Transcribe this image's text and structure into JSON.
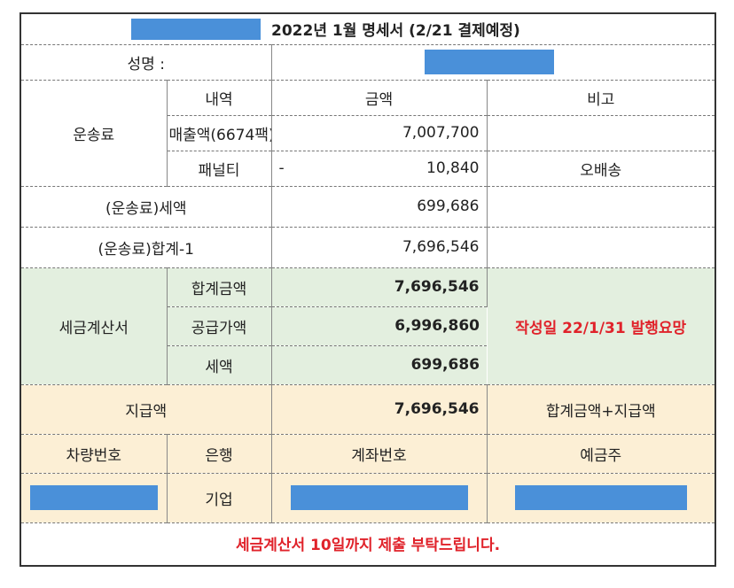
{
  "title": "2022년 1월 명세서 (2/21 결제예정)",
  "name_label": "성명 :",
  "headers": {
    "detail": "내역",
    "amount": "금액",
    "note": "비고"
  },
  "transport": {
    "group_label": "운송료",
    "sales_label": "매출액(6674팩)",
    "sales_amount": "7,007,700",
    "penalty_label": "패널티",
    "penalty_sign": "-",
    "penalty_amount": "10,840",
    "penalty_note": "오배송"
  },
  "tax_row": {
    "label": "(운송료)세액",
    "amount": "699,686"
  },
  "total_row": {
    "label": "(운송료)합계-1",
    "amount": "7,696,546"
  },
  "tax_invoice": {
    "group_label": "세금계산서",
    "total_label": "합계금액",
    "total_amount": "7,696,546",
    "supply_label": "공급가액",
    "supply_amount": "6,996,860",
    "tax_label": "세액",
    "tax_amount": "699,686",
    "note": "작성일 22/1/31 발행요망"
  },
  "payment": {
    "label": "지급액",
    "amount": "7,696,546",
    "note": "합계금액+지급액"
  },
  "bank_headers": {
    "vehicle": "차량번호",
    "bank": "은행",
    "account": "계좌번호",
    "holder": "예금주"
  },
  "bank_values": {
    "bank": "기업"
  },
  "footer_notice": "세금계산서 10일까지 제출 부탁드립니다.",
  "colors": {
    "redaction": "#4a90d9",
    "green_section": "#e3efdf",
    "cream_section": "#fcefd5",
    "red_text": "#e0232b"
  }
}
